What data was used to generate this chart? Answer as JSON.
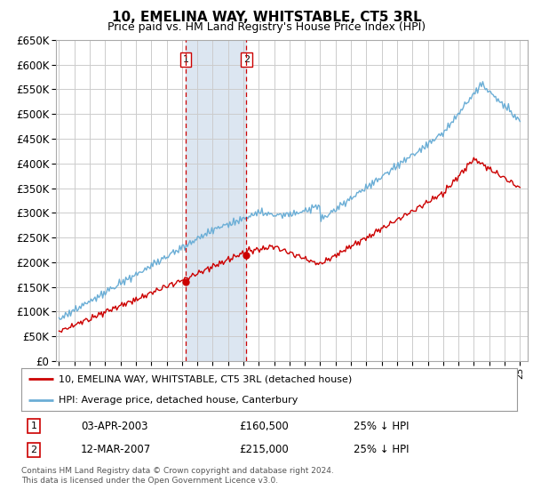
{
  "title": "10, EMELINA WAY, WHITSTABLE, CT5 3RL",
  "subtitle": "Price paid vs. HM Land Registry's House Price Index (HPI)",
  "legend_line1": "10, EMELINA WAY, WHITSTABLE, CT5 3RL (detached house)",
  "legend_line2": "HPI: Average price, detached house, Canterbury",
  "transaction1_date": "03-APR-2003",
  "transaction1_price": "£160,500",
  "transaction1_hpi": "25% ↓ HPI",
  "transaction2_date": "12-MAR-2007",
  "transaction2_price": "£215,000",
  "transaction2_hpi": "25% ↓ HPI",
  "footer": "Contains HM Land Registry data © Crown copyright and database right 2024.\nThis data is licensed under the Open Government Licence v3.0.",
  "hpi_color": "#6baed6",
  "price_color": "#cc0000",
  "background_color": "#ffffff",
  "grid_color": "#cccccc",
  "highlight_color": "#dce6f1",
  "transaction1_x": 2003.25,
  "transaction2_x": 2007.2,
  "transaction1_y": 160500,
  "transaction2_y": 215000,
  "ylim": [
    0,
    650000
  ],
  "xlim_start": 1994.8,
  "xlim_end": 2025.5
}
